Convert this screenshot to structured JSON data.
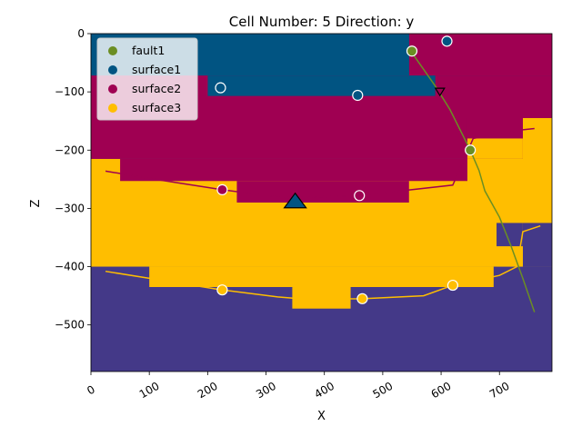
{
  "chart_data": {
    "type": "scatter",
    "title": "Cell Number: 5 Direction: y",
    "xlabel": "X",
    "ylabel": "Z",
    "xlim": [
      0,
      790
    ],
    "ylim": [
      -580,
      0
    ],
    "x_ticks": [
      0,
      100,
      200,
      300,
      400,
      500,
      600,
      700
    ],
    "y_ticks": [
      0,
      -100,
      -200,
      -300,
      -400,
      -500
    ],
    "grid": false,
    "legend_position": "top-left",
    "legend": [
      {
        "name": "fault1",
        "color": "#6b8e23"
      },
      {
        "name": "surface1",
        "color": "#015482"
      },
      {
        "name": "surface2",
        "color": "#9f0052"
      },
      {
        "name": "surface3",
        "color": "#ffbe00"
      }
    ],
    "background_color": "#443988",
    "blocks": [
      {
        "color": "#ffbe00",
        "x": [
          0,
          790
        ],
        "z": [
          -400,
          -215
        ]
      },
      {
        "color": "#ffbe00",
        "x": [
          100,
          690
        ],
        "z": [
          -435,
          -400
        ]
      },
      {
        "color": "#ffbe00",
        "x": [
          345,
          445
        ],
        "z": [
          -472,
          -435
        ]
      },
      {
        "color": "#9f0052",
        "x": [
          0,
          790
        ],
        "z": [
          -215,
          -72
        ]
      },
      {
        "color": "#015482",
        "x": [
          0,
          790
        ],
        "z": [
          -72,
          0
        ]
      },
      {
        "color": "#ffbe00",
        "x": [
          740,
          790
        ],
        "z": [
          -325,
          -145
        ]
      },
      {
        "color": "#443988",
        "x": [
          740,
          790
        ],
        "z": [
          -400,
          -325
        ]
      },
      {
        "color": "#9f0052",
        "x": [
          50,
          645
        ],
        "z": [
          -253,
          -215
        ]
      },
      {
        "color": "#9f0052",
        "x": [
          250,
          545
        ],
        "z": [
          -290,
          -253
        ]
      },
      {
        "color": "#9f0052",
        "x": [
          645,
          740
        ],
        "z": [
          -180,
          -145
        ]
      },
      {
        "color": "#ffbe00",
        "x": [
          695,
          740
        ],
        "z": [
          -400,
          -325
        ]
      },
      {
        "color": "#443988",
        "x": [
          695,
          740
        ],
        "z": [
          -365,
          -325
        ]
      },
      {
        "color": "#ffbe00",
        "x": [
          0,
          100
        ],
        "z": [
          -215,
          -215
        ]
      },
      {
        "color": "#9f0052",
        "x": [
          0,
          790
        ],
        "z": [
          -72,
          -72
        ]
      },
      {
        "color": "#9f0052",
        "x": [
          200,
          590
        ],
        "z": [
          -107,
          -72
        ]
      },
      {
        "color": "#ffbe00",
        "x": [
          645,
          740
        ],
        "z": [
          -215,
          -180
        ]
      },
      {
        "color": "#ffbe00",
        "x": [
          740,
          790
        ],
        "z": [
          -145,
          -145
        ]
      },
      {
        "color": "#9f0052",
        "x": [
          590,
          790
        ],
        "z": [
          -145,
          -72
        ]
      },
      {
        "color": "#9f0052",
        "x": [
          545,
          790
        ],
        "z": [
          -72,
          0
        ]
      },
      {
        "color": "#015482",
        "x": [
          0,
          545
        ],
        "z": [
          -72,
          0
        ]
      },
      {
        "color": "#015482",
        "x": [
          200,
          590
        ],
        "z": [
          -107,
          -72
        ]
      },
      {
        "color": "#9f0052",
        "x": [
          0,
          200
        ],
        "z": [
          -107,
          -72
        ]
      }
    ],
    "series": [
      {
        "name": "surface2",
        "line_color": "#9f0052",
        "line": [
          [
            25,
            -236
          ],
          [
            110,
            -250
          ],
          [
            225,
            -268
          ],
          [
            330,
            -282
          ],
          [
            460,
            -278
          ],
          [
            620,
            -260
          ],
          [
            655,
            -180
          ],
          [
            740,
            -165
          ],
          [
            760,
            -163
          ]
        ],
        "points": [
          [
            225,
            -268
          ],
          [
            460,
            -278
          ]
        ]
      },
      {
        "name": "surface3",
        "line_color": "#ffbe00",
        "line": [
          [
            25,
            -408
          ],
          [
            100,
            -420
          ],
          [
            225,
            -440
          ],
          [
            320,
            -452
          ],
          [
            370,
            -456
          ],
          [
            465,
            -455
          ],
          [
            570,
            -450
          ],
          [
            620,
            -432
          ],
          [
            700,
            -415
          ],
          [
            730,
            -400
          ],
          [
            740,
            -340
          ],
          [
            770,
            -330
          ]
        ],
        "points": [
          [
            225,
            -440
          ],
          [
            465,
            -455
          ],
          [
            620,
            -432
          ]
        ]
      },
      {
        "name": "surface1",
        "line_color": "#015482",
        "line": [],
        "points": [
          [
            222,
            -93
          ],
          [
            457,
            -106
          ],
          [
            610,
            -13
          ]
        ]
      },
      {
        "name": "fault1",
        "line_color": "#6b8e23",
        "line": [
          [
            548,
            -30
          ],
          [
            590,
            -90
          ],
          [
            615,
            -130
          ],
          [
            635,
            -170
          ],
          [
            650,
            -200
          ],
          [
            665,
            -235
          ],
          [
            675,
            -270
          ],
          [
            700,
            -315
          ],
          [
            720,
            -365
          ],
          [
            740,
            -420
          ],
          [
            760,
            -478
          ]
        ],
        "points": [
          [
            550,
            -30
          ],
          [
            650,
            -200
          ]
        ]
      }
    ],
    "markers": [
      {
        "type": "triangle-up",
        "x": 350,
        "z": -288,
        "color": "#015482"
      },
      {
        "type": "triangle-down",
        "x": 598,
        "z": -100,
        "color": "#9f0052"
      }
    ]
  }
}
